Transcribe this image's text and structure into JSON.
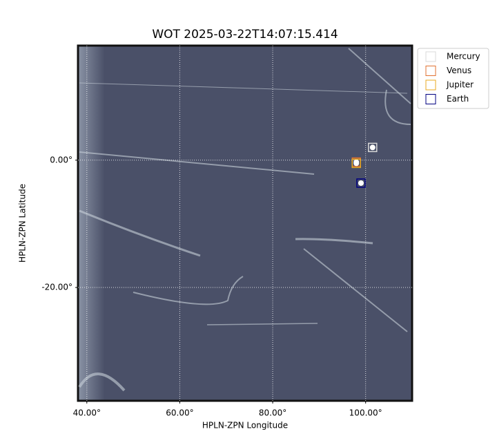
{
  "chart_data": {
    "type": "image",
    "title": "WOT 2025-03-22T14:07:15.414",
    "xlabel": "HPLN-ZPN Longitude",
    "ylabel": "HPLN-ZPN Latitude",
    "xlim": [
      38.1,
      110.0
    ],
    "ylim": [
      -37.8,
      18.0
    ],
    "xticks": [
      {
        "value": 40,
        "label": "40.00°"
      },
      {
        "value": 60,
        "label": "60.00°"
      },
      {
        "value": 80,
        "label": "80.00°"
      },
      {
        "value": 100,
        "label": "100.00°"
      }
    ],
    "yticks": [
      {
        "value": 0,
        "label": "0.00°"
      },
      {
        "value": -20,
        "label": "-20.00°"
      }
    ],
    "grid": true,
    "legend": "upper right",
    "series": [
      {
        "name": "Mercury",
        "color": "#d8d8d8",
        "x": [
          101.5
        ],
        "values": [
          2.0
        ]
      },
      {
        "name": "Venus",
        "color": "#e07030",
        "x": [
          98.0
        ],
        "values": [
          -0.3
        ]
      },
      {
        "name": "Jupiter",
        "color": "#e8a820",
        "x": [
          98.0
        ],
        "values": [
          -0.5
        ]
      },
      {
        "name": "Earth",
        "color": "#000080",
        "x": [
          99.0
        ],
        "values": [
          -3.6
        ]
      }
    ]
  }
}
